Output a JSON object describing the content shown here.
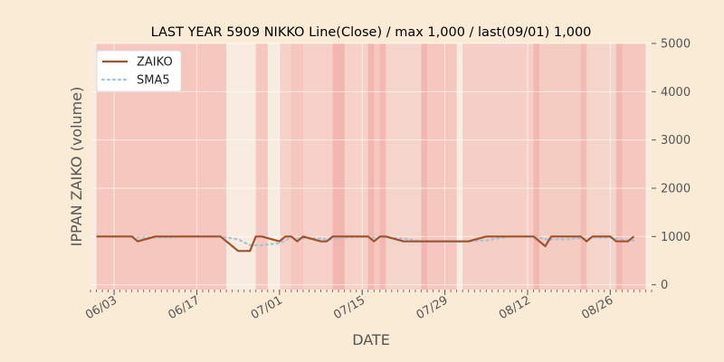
{
  "chart_data": {
    "type": "line",
    "title": "LAST YEAR 5909 NIKKO Line(Close) / max 1,000 / last(09/01) 1,000",
    "xlabel": "DATE",
    "ylabel": "IPPAN ZAIKO (volume)",
    "ylim": [
      -100,
      5000
    ],
    "yticks": [
      0,
      1000,
      2000,
      3000,
      4000,
      5000
    ],
    "x_range": [
      "2019-05-30",
      "2019-09-02"
    ],
    "xticks": [
      "06/03",
      "06/17",
      "07/01",
      "07/15",
      "07/29",
      "08/12",
      "08/26"
    ],
    "xtick_dates": [
      "2019-06-03",
      "2019-06-17",
      "2019-07-01",
      "2019-07-15",
      "2019-07-29",
      "2019-08-12",
      "2019-08-26"
    ],
    "legend_position": "top-left",
    "grid": true,
    "colors": {
      "background": "#faebd7",
      "zaiko": "#a0522d",
      "sma5": "#a9c3d6",
      "band": "#f08080"
    },
    "series": [
      {
        "name": "ZAIKO",
        "style": "solid",
        "x": [
          "2019-05-31",
          "2019-06-03",
          "2019-06-04",
          "2019-06-05",
          "2019-06-06",
          "2019-06-07",
          "2019-06-10",
          "2019-06-11",
          "2019-06-12",
          "2019-06-13",
          "2019-06-14",
          "2019-06-17",
          "2019-06-18",
          "2019-06-19",
          "2019-06-20",
          "2019-06-21",
          "2019-06-24",
          "2019-06-25",
          "2019-06-26",
          "2019-06-27",
          "2019-06-28",
          "2019-07-01",
          "2019-07-02",
          "2019-07-03",
          "2019-07-04",
          "2019-07-05",
          "2019-07-08",
          "2019-07-09",
          "2019-07-10",
          "2019-07-11",
          "2019-07-12",
          "2019-07-16",
          "2019-07-17",
          "2019-07-18",
          "2019-07-19",
          "2019-07-22",
          "2019-07-23",
          "2019-07-24",
          "2019-07-25",
          "2019-07-26",
          "2019-07-29",
          "2019-07-30",
          "2019-07-31",
          "2019-08-01",
          "2019-08-02",
          "2019-08-05",
          "2019-08-06",
          "2019-08-07",
          "2019-08-08",
          "2019-08-09",
          "2019-08-13",
          "2019-08-14",
          "2019-08-15",
          "2019-08-16",
          "2019-08-19",
          "2019-08-20",
          "2019-08-21",
          "2019-08-22",
          "2019-08-23",
          "2019-08-26",
          "2019-08-27",
          "2019-08-28",
          "2019-08-29",
          "2019-08-30"
        ],
        "values": [
          1000,
          1000,
          1000,
          1000,
          1000,
          900,
          1000,
          1000,
          1000,
          1000,
          1000,
          1000,
          1000,
          1000,
          1000,
          1000,
          700,
          700,
          700,
          1000,
          1000,
          900,
          1000,
          1000,
          900,
          1000,
          900,
          900,
          1000,
          1000,
          1000,
          1000,
          900,
          1000,
          1000,
          900,
          900,
          900,
          900,
          900,
          900,
          900,
          900,
          900,
          900,
          1000,
          1000,
          1000,
          1000,
          1000,
          1000,
          900,
          800,
          1000,
          1000,
          1000,
          1000,
          900,
          1000,
          1000,
          900,
          900,
          900,
          1000
        ]
      },
      {
        "name": "SMA5",
        "style": "dotted",
        "x": [
          "2019-06-06",
          "2019-06-07",
          "2019-06-10",
          "2019-06-11",
          "2019-06-12",
          "2019-06-13",
          "2019-06-14",
          "2019-06-17",
          "2019-06-18",
          "2019-06-19",
          "2019-06-20",
          "2019-06-21",
          "2019-06-24",
          "2019-06-25",
          "2019-06-26",
          "2019-06-27",
          "2019-06-28",
          "2019-07-01",
          "2019-07-02",
          "2019-07-03",
          "2019-07-04",
          "2019-07-05",
          "2019-07-08",
          "2019-07-09",
          "2019-07-10",
          "2019-07-11",
          "2019-07-12",
          "2019-07-16",
          "2019-07-17",
          "2019-07-18",
          "2019-07-19",
          "2019-07-22",
          "2019-07-23",
          "2019-07-24",
          "2019-07-25",
          "2019-07-26",
          "2019-07-29",
          "2019-07-30",
          "2019-07-31",
          "2019-08-01",
          "2019-08-02",
          "2019-08-05",
          "2019-08-06",
          "2019-08-07",
          "2019-08-08",
          "2019-08-09",
          "2019-08-13",
          "2019-08-14",
          "2019-08-15",
          "2019-08-16",
          "2019-08-19",
          "2019-08-20",
          "2019-08-21",
          "2019-08-22",
          "2019-08-23",
          "2019-08-26",
          "2019-08-27",
          "2019-08-28",
          "2019-08-29",
          "2019-08-30"
        ],
        "values": [
          1000,
          980,
          980,
          980,
          980,
          980,
          1000,
          1000,
          1000,
          1000,
          1000,
          1000,
          940,
          880,
          820,
          820,
          820,
          860,
          920,
          980,
          960,
          960,
          960,
          940,
          940,
          960,
          980,
          1000,
          980,
          980,
          980,
          960,
          940,
          920,
          900,
          900,
          900,
          900,
          900,
          900,
          900,
          920,
          940,
          960,
          980,
          1000,
          1000,
          980,
          940,
          940,
          940,
          960,
          960,
          960,
          980,
          980,
          960,
          940,
          920,
          920
        ]
      }
    ],
    "bands": [
      {
        "start": "2019-05-31",
        "end": "2019-06-21",
        "opacity": 0.34
      },
      {
        "start": "2019-06-27",
        "end": "2019-06-28",
        "opacity": 0.34
      },
      {
        "start": "2019-07-01",
        "end": "2019-07-02",
        "opacity": 0.25
      },
      {
        "start": "2019-07-03",
        "end": "2019-07-04",
        "opacity": 0.34
      },
      {
        "start": "2019-07-05",
        "end": "2019-07-10",
        "opacity": 0.25
      },
      {
        "start": "2019-07-10",
        "end": "2019-07-11",
        "opacity": 0.34
      },
      {
        "start": "2019-07-11",
        "end": "2019-07-16",
        "opacity": 0.25
      },
      {
        "start": "2019-07-16",
        "end": "2019-07-18",
        "opacity": 0.34
      },
      {
        "start": "2019-07-18",
        "end": "2019-07-25",
        "opacity": 0.22
      },
      {
        "start": "2019-07-25",
        "end": "2019-07-30",
        "opacity": 0.34
      },
      {
        "start": "2019-08-01",
        "end": "2019-08-13",
        "opacity": 0.28
      },
      {
        "start": "2019-08-13",
        "end": "2019-08-21",
        "opacity": 0.3
      },
      {
        "start": "2019-08-21",
        "end": "2019-08-27",
        "opacity": 0.22
      },
      {
        "start": "2019-08-27",
        "end": "2019-08-31",
        "opacity": 0.34
      }
    ]
  }
}
